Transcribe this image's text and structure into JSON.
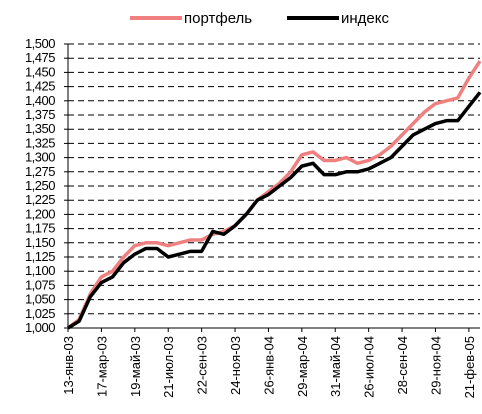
{
  "chart_data": {
    "type": "line",
    "categories": [
      "13-янв-03",
      null,
      null,
      "17-мар-03",
      null,
      null,
      "19-май-03",
      null,
      null,
      "21-июл-03",
      null,
      null,
      "22-сен-03",
      null,
      null,
      "24-ноя-03",
      null,
      null,
      "26-янв-04",
      null,
      null,
      "29-мар-04",
      null,
      null,
      "31-май-04",
      null,
      null,
      "26-июл-04",
      null,
      null,
      "28-сен-04",
      null,
      null,
      "29-ноя-04",
      null,
      null,
      "21-фев-05",
      null
    ],
    "series": [
      {
        "name": "портфель",
        "color": "#f08080",
        "values": [
          1.0,
          1.015,
          1.06,
          1.09,
          1.1,
          1.125,
          1.145,
          1.15,
          1.15,
          1.145,
          1.15,
          1.155,
          1.155,
          1.165,
          1.17,
          1.18,
          1.2,
          1.225,
          1.24,
          1.255,
          1.275,
          1.305,
          1.31,
          1.295,
          1.295,
          1.3,
          1.29,
          1.295,
          1.305,
          1.32,
          1.34,
          1.36,
          1.38,
          1.395,
          1.4,
          1.405,
          1.44,
          1.47
        ]
      },
      {
        "name": "индекс",
        "color": "#000000",
        "values": [
          1.0,
          1.012,
          1.055,
          1.08,
          1.09,
          1.115,
          1.13,
          1.14,
          1.14,
          1.125,
          1.13,
          1.135,
          1.135,
          1.17,
          1.165,
          1.18,
          1.2,
          1.225,
          1.235,
          1.25,
          1.265,
          1.285,
          1.29,
          1.27,
          1.27,
          1.275,
          1.275,
          1.28,
          1.29,
          1.3,
          1.32,
          1.34,
          1.35,
          1.36,
          1.365,
          1.365,
          1.39,
          1.415
        ]
      }
    ],
    "ylim": [
      1.0,
      1.5
    ],
    "yticks": [
      {
        "value": 1.0,
        "label": "1,000"
      },
      {
        "value": 1.025,
        "label": "1,025"
      },
      {
        "value": 1.05,
        "label": "1,050"
      },
      {
        "value": 1.075,
        "label": "1,075"
      },
      {
        "value": 1.1,
        "label": "1,100"
      },
      {
        "value": 1.125,
        "label": "1,125"
      },
      {
        "value": 1.15,
        "label": "1,150"
      },
      {
        "value": 1.175,
        "label": "1,175"
      },
      {
        "value": 1.2,
        "label": "1,200"
      },
      {
        "value": 1.225,
        "label": "1,225"
      },
      {
        "value": 1.25,
        "label": "1,250"
      },
      {
        "value": 1.275,
        "label": "1,275"
      },
      {
        "value": 1.3,
        "label": "1,300"
      },
      {
        "value": 1.325,
        "label": "1,325"
      },
      {
        "value": 1.35,
        "label": "1,350"
      },
      {
        "value": 1.375,
        "label": "1,375"
      },
      {
        "value": 1.4,
        "label": "1,400"
      },
      {
        "value": 1.425,
        "label": "1,425"
      },
      {
        "value": 1.45,
        "label": "1,450"
      },
      {
        "value": 1.475,
        "label": "1,475"
      },
      {
        "value": 1.5,
        "label": "1,500"
      }
    ],
    "grid": true,
    "legend": "top"
  }
}
